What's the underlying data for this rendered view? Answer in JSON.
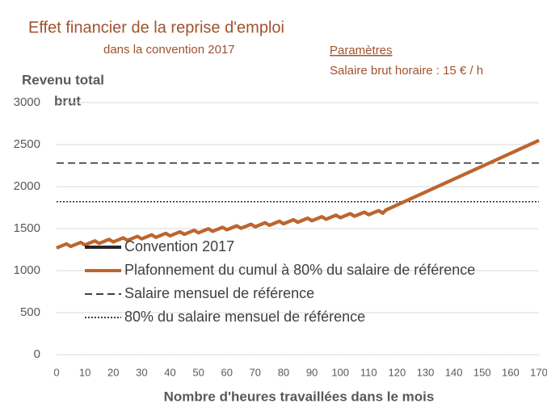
{
  "chart_data": {
    "type": "line",
    "title": "Effet financier de la reprise d'emploi",
    "subtitle": "dans la convention 2017",
    "annotations": [
      "Paramètres",
      "Salaire brut horaire :  15 € / h"
    ],
    "ylabel": [
      "Revenu total",
      "brut"
    ],
    "xlabel": "Nombre d'heures travaillées dans le mois",
    "x": [
      0,
      3.5,
      5,
      8.5,
      10,
      13.5,
      15,
      18.5,
      20,
      23.5,
      25,
      28.5,
      30,
      33.5,
      35,
      38.5,
      40,
      43.5,
      45,
      48.5,
      50,
      53.5,
      55,
      58.5,
      60,
      63.5,
      65,
      68.5,
      70,
      73.5,
      75,
      78.5,
      80,
      83.5,
      85,
      88.5,
      90,
      93.5,
      95,
      98.5,
      100,
      103.5,
      105,
      108.5,
      110,
      113.5,
      115,
      116,
      170
    ],
    "series": [
      {
        "name": "Convention 2017",
        "color": "#262626",
        "values": [
          1270,
          1318,
          1288,
          1336,
          1306,
          1354,
          1324,
          1372,
          1342,
          1390,
          1360,
          1408,
          1378,
          1426,
          1396,
          1444,
          1414,
          1462,
          1432,
          1480,
          1450,
          1498,
          1468,
          1516,
          1486,
          1534,
          1504,
          1552,
          1522,
          1570,
          1540,
          1588,
          1558,
          1606,
          1576,
          1624,
          1594,
          1642,
          1612,
          1660,
          1630,
          1678,
          1648,
          1696,
          1666,
          1714,
          1684,
          1720,
          2550
        ]
      },
      {
        "name": "Plafonnement du cumul à 80% du salaire de référence",
        "color": "#c0652a",
        "values": [
          1270,
          1318,
          1288,
          1336,
          1306,
          1354,
          1324,
          1372,
          1342,
          1390,
          1360,
          1408,
          1378,
          1426,
          1396,
          1444,
          1414,
          1462,
          1432,
          1480,
          1450,
          1498,
          1468,
          1516,
          1486,
          1534,
          1504,
          1552,
          1522,
          1570,
          1540,
          1588,
          1558,
          1606,
          1576,
          1624,
          1594,
          1642,
          1612,
          1660,
          1630,
          1678,
          1648,
          1696,
          1666,
          1714,
          1684,
          1720,
          2550
        ]
      }
    ],
    "reference_lines": [
      {
        "name": "Salaire mensuel de référence",
        "value": 2280,
        "color": "#000000",
        "dash": "dashed"
      },
      {
        "name": "80% du salaire mensuel de référence",
        "value": 1820,
        "color": "#000000",
        "dash": "dotted"
      }
    ],
    "xlim": [
      0,
      170
    ],
    "xticks": [
      0,
      10,
      20,
      30,
      40,
      50,
      60,
      70,
      80,
      90,
      100,
      110,
      120,
      130,
      140,
      150,
      160,
      170
    ],
    "ylim": [
      0,
      3000
    ],
    "yticks": [
      0,
      500,
      1000,
      1500,
      2000,
      2500,
      3000
    ],
    "grid": true
  }
}
